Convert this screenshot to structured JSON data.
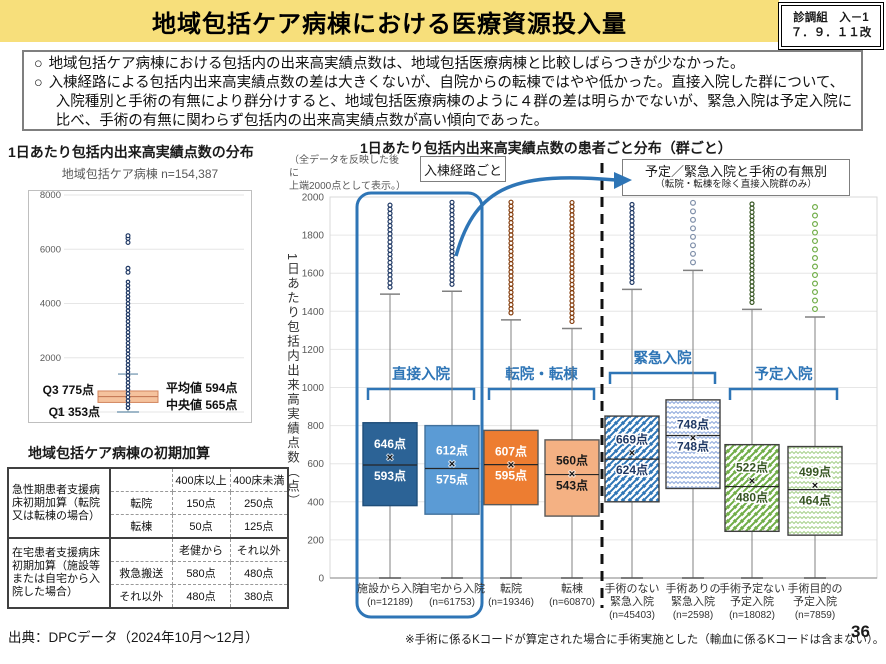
{
  "header": {
    "title": "地域包括ケア病棟における医療資源投入量",
    "stamp_line1": "診調組　入－1",
    "stamp_line2": "７．９．１１改"
  },
  "summary": {
    "bullets": [
      {
        "marker": "○",
        "text": "地域包括ケア病棟における包括内の出来高実績点数は、地域包括医療病棟と比較しばらつきが少なかった。"
      },
      {
        "marker": "○",
        "text": "入棟経路による包括内出来高実績点数の差は大きくないが、自院からの転棟ではやや低かった。直接入院した群について、入院種別と手術の有無により群分けすると、地域包括医療病棟のように４群の差は明らかでないが、緊急入院は予定入院に比べ、手術の有無に関わらず包括内の出来高実績点数が高い傾向であった。"
      }
    ]
  },
  "left_panel": {
    "heading": "1日あたり包括内出来高実績点数の分布"
  },
  "table": {
    "title": "地域包括ケア病棟の初期加算",
    "group1": {
      "header": "急性期患者支援病床初期加算（転院又は転棟の場合）",
      "col_headers": [
        "400床以上",
        "400床未満"
      ],
      "rows": [
        {
          "label": "転院",
          "v1": "150点",
          "v2": "250点"
        },
        {
          "label": "転棟",
          "v1": "50点",
          "v2": "125点"
        }
      ]
    },
    "group2": {
      "header": "在宅患者支援病床初期加算（施設等または自宅から入院した場合）",
      "col_headers": [
        "老健から",
        "それ以外"
      ],
      "rows": [
        {
          "label": "救急搬送",
          "v1": "580点",
          "v2": "480点"
        },
        {
          "label": "それ以外",
          "v1": "480点",
          "v2": "380点"
        }
      ]
    }
  },
  "source": "出典：DPCデータ（2024年10月～12月）",
  "footnote": "※手術に係るKコードが算定された場合に手術実施とした（輸血に係るKコードは含まない）。",
  "page_number": "36",
  "chart_data": [
    {
      "type": "boxplot",
      "title": "1日あたり包括内出来高実績点数の分布",
      "subtitle": "地域包括ケア病棟 n=154,387",
      "ylim": [
        0,
        8000
      ],
      "yticks": [
        0,
        2000,
        4000,
        6000,
        8000
      ],
      "box": {
        "q1": 353,
        "median": 565,
        "q3": 775,
        "mean": 594,
        "whisker_low": 0,
        "whisker_high": 1400
      },
      "annotations": {
        "q3": "Q3 775点",
        "q1": "Q1 353点",
        "mean": "平均値 594点",
        "median": "中央値 565点"
      },
      "outlier_dense_range": [
        150,
        4800
      ],
      "outliers": [
        5150,
        5300,
        6250,
        6400,
        6500
      ],
      "colors": {
        "box_fill": "#F5C29D",
        "box_border": "#D2845C",
        "median_line": "#C0714F",
        "dots": "#1F3864",
        "grid": "#E6E6E6",
        "frame": "#BFBFBF",
        "tick_text": "#595959"
      }
    },
    {
      "type": "boxplot",
      "title": "1日あたり包括内出来高実績点数の患者ごと分布（群ごと）",
      "note_lines": [
        "（全データを反映した後に",
        "上端2000点として表示。）"
      ],
      "label_box1": "入棟経路ごと",
      "label_box2_line1": "予定／緊急入院と手術の有無別",
      "label_box2_line2": "（転院・転棟を除く直接入院群のみ）",
      "ylabel": "1日あたり包括内出来高実績点数（点）",
      "ylim": [
        0,
        2000
      ],
      "ytick_step": 200,
      "groups": [
        {
          "name": "施設から入院",
          "n": "(n=12189)",
          "q1": 380,
          "median": 593,
          "q3": 815,
          "mean": 646,
          "whisker_low": 0,
          "whisker_high": 1490,
          "mean_label": "646点",
          "median_label": "593点",
          "style": "solid-darkblue",
          "dots": "dense"
        },
        {
          "name": "自宅から入院",
          "n": "(n=61753)",
          "q1": 335,
          "median": 575,
          "q3": 800,
          "mean": 612,
          "whisker_low": 0,
          "whisker_high": 1505,
          "mean_label": "612点",
          "median_label": "575点",
          "style": "solid-lightblue",
          "dots": "dense"
        },
        {
          "name": "転院",
          "n": "(n=19346)",
          "q1": 385,
          "median": 595,
          "q3": 775,
          "mean": 607,
          "whisker_low": 0,
          "whisker_high": 1355,
          "mean_label": "607点",
          "median_label": "595点",
          "style": "solid-orange",
          "dots": "dense"
        },
        {
          "name": "転棟",
          "n": "(n=60870)",
          "q1": 325,
          "median": 543,
          "q3": 725,
          "mean": 560,
          "whisker_low": 0,
          "whisker_high": 1310,
          "mean_label": "560点",
          "median_label": "543点",
          "style": "solid-salmon",
          "dots": "dense"
        },
        {
          "name": "手術のない\n緊急入院",
          "n": "(n=45403)",
          "q1": 400,
          "median": 624,
          "q3": 850,
          "mean": 669,
          "whisker_low": 0,
          "whisker_high": 1515,
          "mean_label": "669点",
          "median_label": "624点",
          "style": "hatch-blue",
          "dots": "dense"
        },
        {
          "name": "手術ありの\n緊急入院",
          "n": "(n=2598)",
          "q1": 470,
          "median": 748,
          "q3": 935,
          "mean": 748,
          "whisker_low": 0,
          "whisker_high": 1615,
          "mean_label": "748点",
          "median_label": "748点",
          "style": "zigzag-blue",
          "dots": "sparse"
        },
        {
          "name": "手術予定ない\n予定入院",
          "n": "(n=18082)",
          "q1": 245,
          "median": 480,
          "q3": 700,
          "mean": 522,
          "whisker_low": 0,
          "whisker_high": 1410,
          "mean_label": "522点",
          "median_label": "480点",
          "style": "hatch-green",
          "dots": "dense"
        },
        {
          "name": "手術目的の\n予定入院",
          "n": "(n=7859)",
          "q1": 225,
          "median": 464,
          "q3": 690,
          "mean": 499,
          "whisker_low": 0,
          "whisker_high": 1370,
          "mean_label": "499点",
          "median_label": "464点",
          "style": "zigzag-green",
          "dots": "sparse"
        }
      ],
      "brackets": [
        {
          "label": "直接入院",
          "cols": [
            0,
            1
          ],
          "y": 239
        },
        {
          "label": "転院・転棟",
          "cols": [
            2,
            3
          ],
          "y": 239
        },
        {
          "label": "緊急入院",
          "cols": [
            4,
            5
          ],
          "y": 223
        },
        {
          "label": "予定入院",
          "cols": [
            6,
            7
          ],
          "y": 239
        }
      ],
      "styles": {
        "solid-darkblue": {
          "fill": "#2C6396",
          "stroke": "#1F4E79",
          "text": "#FFFFFF",
          "dot": "#1F3864"
        },
        "solid-lightblue": {
          "fill": "#5B9BD5",
          "stroke": "#41719C",
          "text": "#FFFFFF",
          "dot": "#1F3864"
        },
        "solid-orange": {
          "fill": "#ED7D31",
          "stroke": "#595959",
          "text": "#FFFFFF",
          "dot": "#843C0C"
        },
        "solid-salmon": {
          "fill": "#F4B183",
          "stroke": "#595959",
          "text": "#1a1a1a",
          "dot": "#843C0C"
        },
        "hatch-blue": {
          "hatch": "diag",
          "color": "#2E75B6",
          "stroke": "#404040",
          "text": "#1F3864",
          "dot": "#1F3864"
        },
        "zigzag-blue": {
          "hatch": "zigzag",
          "color": "#8FAADC",
          "stroke": "#404040",
          "text": "#1F3864",
          "dot": "#7F8FA9"
        },
        "hatch-green": {
          "hatch": "diag",
          "color": "#70AD47",
          "stroke": "#404040",
          "text": "#375623",
          "dot": "#375623"
        },
        "zigzag-green": {
          "hatch": "zigzag",
          "color": "#A9D18E",
          "stroke": "#404040",
          "text": "#375623",
          "dot": "#70AD47"
        }
      },
      "accent_blue": "#2E75B6",
      "colors": {
        "grid": "#E6E6E6",
        "frame": "#D9D9D9",
        "axis": "#9a9a9a",
        "whisker": "#808080",
        "tick_text": "#595959"
      }
    }
  ]
}
